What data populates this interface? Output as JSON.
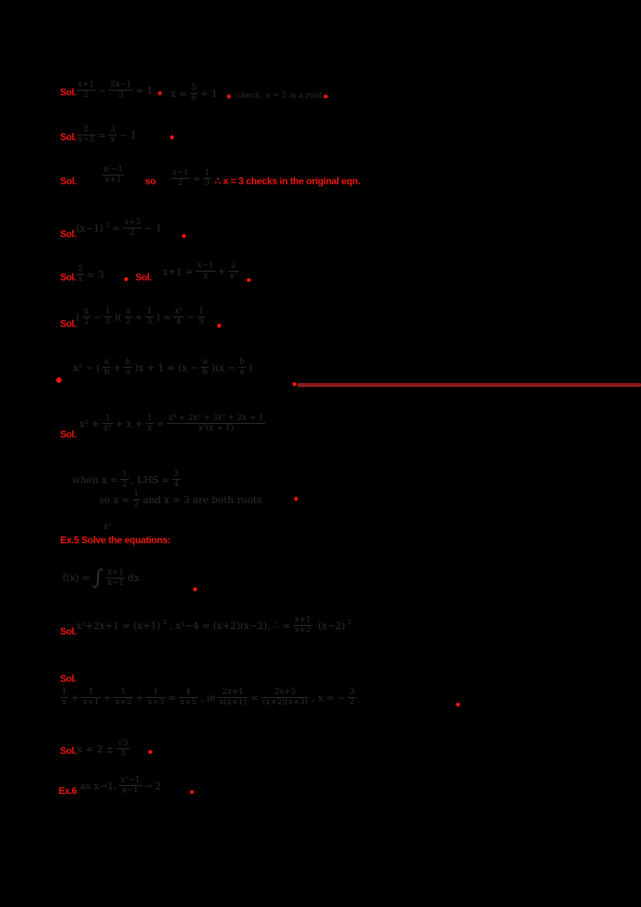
{
  "page": {
    "background": "#000000",
    "accent_red": "#f2150a",
    "divider_color": "#8b1b1b",
    "ink_color": "#2e2e2e"
  },
  "rows": {
    "r1": {
      "label": "Sol.",
      "m1": [
        {
          "f": [
            "x+1",
            "2"
          ]
        },
        {
          "t": "−"
        },
        {
          "f": [
            "2x−1",
            "3"
          ]
        },
        {
          "t": "= 1"
        }
      ],
      "m2": [
        {
          "t": "x ="
        },
        {
          "f": [
            "5",
            "6"
          ]
        },
        {
          "t": "+ 1"
        }
      ],
      "m3": [
        {
          "t": "check: x = 5 is a root"
        }
      ]
    },
    "r2": {
      "label": "Sol.",
      "m1": [
        {
          "f": [
            "2",
            "x−3"
          ]
        },
        {
          "t": "="
        },
        {
          "f": [
            "3",
            "x"
          ]
        },
        {
          "t": "− 1"
        }
      ]
    },
    "r3": {
      "red1": "Sol.",
      "m1": [
        {
          "f": [
            "x²−1",
            "x+1"
          ]
        }
      ],
      "red2": "so",
      "m2": [
        {
          "f": [
            "x−1",
            "2"
          ]
        },
        {
          "t": "="
        },
        {
          "f": [
            "1",
            "3"
          ]
        }
      ],
      "red3": "∴ x = 3 checks in the original eqn."
    },
    "r4": {
      "label": "Sol.",
      "m1": [
        {
          "t": "(x−1)"
        },
        {
          "s": "2"
        },
        {
          "t": "="
        },
        {
          "f": [
            "x+3",
            "2"
          ]
        },
        {
          "t": "− 1"
        }
      ]
    },
    "r5": {
      "label": "Sol.",
      "m1": [
        {
          "f": [
            "2",
            "x"
          ]
        },
        {
          "t": "= 3"
        }
      ],
      "label2": "Sol.",
      "m2": [
        {
          "t": "x+1 ="
        },
        {
          "f": [
            "x−1",
            "x"
          ]
        },
        {
          "t": "+"
        },
        {
          "f": [
            "2",
            "x²"
          ]
        }
      ]
    },
    "r6": {
      "label": "Sol.",
      "m1": [
        {
          "t": "("
        },
        {
          "f": [
            "x",
            "2"
          ]
        },
        {
          "t": "−"
        },
        {
          "f": [
            "1",
            "3"
          ]
        },
        {
          "t": ")("
        },
        {
          "f": [
            "x",
            "2"
          ]
        },
        {
          "t": "+"
        },
        {
          "f": [
            "1",
            "3"
          ]
        },
        {
          "t": ") ="
        },
        {
          "f": [
            "x²",
            "4"
          ]
        },
        {
          "t": "−"
        },
        {
          "f": [
            "1",
            "9"
          ]
        }
      ]
    },
    "r7": {
      "m1": [
        {
          "t": "x² − ("
        },
        {
          "f": [
            "a",
            "b"
          ]
        },
        {
          "t": "+"
        },
        {
          "f": [
            "b",
            "a"
          ]
        },
        {
          "t": ")x + 1 = (x −"
        },
        {
          "f": [
            "a",
            "b"
          ]
        },
        {
          "t": ")(x −"
        },
        {
          "f": [
            "b",
            "a"
          ]
        },
        {
          "t": ")"
        }
      ]
    },
    "r8": {
      "label": "Sol.",
      "m1": [
        {
          "t": "x² +"
        },
        {
          "f": [
            "1",
            "x²"
          ]
        },
        {
          "t": "+ x +"
        },
        {
          "f": [
            "1",
            "x"
          ]
        },
        {
          "t": "="
        },
        {
          "f": [
            "x⁴ + 2x³ + 3x² + 2x + 1",
            "x²(x + 1)"
          ]
        }
      ]
    },
    "r9": {
      "m1": [
        {
          "t": "when x ="
        },
        {
          "f": [
            "1",
            "2"
          ]
        },
        {
          "t": ", LHS ="
        },
        {
          "f": [
            "3",
            "4"
          ]
        }
      ],
      "m2": [
        {
          "t": "so x ="
        },
        {
          "f": [
            "1",
            "2"
          ]
        },
        {
          "t": "and x = 3 are both roots"
        }
      ]
    },
    "r10": {
      "sup": "x²",
      "red1": "Ex.5  Solve the equations:"
    },
    "r11": {
      "m1": [
        {
          "t": "f(x) ="
        },
        {
          "b": "∫"
        },
        {
          "f": [
            "x+1",
            "x−1"
          ]
        },
        {
          "t": "dx"
        }
      ]
    },
    "r12": {
      "label": "Sol.",
      "m1": [
        {
          "t": "x²+2x+1 = (x+1)"
        },
        {
          "s": "2"
        },
        {
          "t": ",  x²−4 = (x+2)(x−2),  ∴ ="
        },
        {
          "f": [
            "x+1",
            "x+2"
          ]
        },
        {
          "t": "·(x−2)"
        },
        {
          "s": "2"
        }
      ]
    },
    "r13": {
      "label": "Sol."
    },
    "r14": {
      "m1": [
        {
          "f": [
            "1",
            "x"
          ]
        },
        {
          "t": "+"
        },
        {
          "f": [
            "1",
            "x+1"
          ]
        },
        {
          "t": "+"
        },
        {
          "f": [
            "1",
            "x+2"
          ]
        },
        {
          "t": "+"
        },
        {
          "f": [
            "1",
            "x+3"
          ]
        },
        {
          "t": "="
        },
        {
          "f": [
            "4",
            "x+5"
          ]
        },
        {
          "t": ",  ie"
        },
        {
          "f": [
            "2x+1",
            "x(x+1)"
          ]
        },
        {
          "t": "="
        },
        {
          "f": [
            "2x+5",
            "(x+2)(x+3)"
          ]
        },
        {
          "t": ",  x = −"
        },
        {
          "f": [
            "3",
            "2"
          ]
        }
      ]
    },
    "r15": {
      "label": "Sol.",
      "m1": [
        {
          "t": "x = 2 ±"
        },
        {
          "f": [
            "√3",
            "3"
          ]
        }
      ]
    },
    "r16": {
      "label": "Ex.6",
      "m1": [
        {
          "t": "as x→1,"
        },
        {
          "f": [
            "x²−1",
            "x−1"
          ]
        },
        {
          "t": "→ 2"
        }
      ]
    }
  }
}
